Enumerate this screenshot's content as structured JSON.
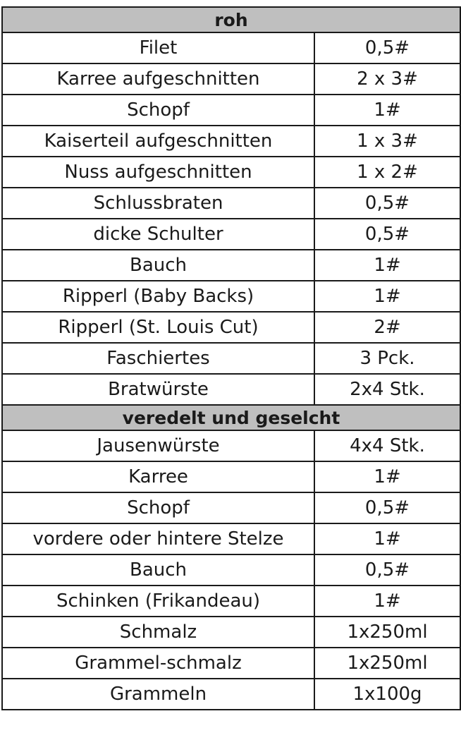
{
  "sections": [
    {
      "title": "roh",
      "rows": [
        {
          "name": "Filet",
          "amount": "0,5#"
        },
        {
          "name": "Karree aufgeschnitten",
          "amount": "2 x 3#"
        },
        {
          "name": "Schopf",
          "amount": "1#"
        },
        {
          "name": "Kaiserteil aufgeschnitten",
          "amount": "1 x 3#"
        },
        {
          "name": "Nuss aufgeschnitten",
          "amount": "1 x 2#"
        },
        {
          "name": "Schlussbraten",
          "amount": "0,5#"
        },
        {
          "name": "dicke Schulter",
          "amount": "0,5#"
        },
        {
          "name": "Bauch",
          "amount": "1#"
        },
        {
          "name": "Ripperl (Baby Backs)",
          "amount": "1#"
        },
        {
          "name": "Ripperl (St. Louis Cut)",
          "amount": "2#"
        },
        {
          "name": "Faschiertes",
          "amount": "3 Pck."
        },
        {
          "name": "Bratwürste",
          "amount": "2x4 Stk."
        }
      ]
    },
    {
      "title": "veredelt und geselcht",
      "rows": [
        {
          "name": "Jausenwürste",
          "amount": "4x4 Stk."
        },
        {
          "name": "Karree",
          "amount": "1#"
        },
        {
          "name": "Schopf",
          "amount": "0,5#"
        },
        {
          "name": "vordere oder hintere Stelze",
          "amount": "1#"
        },
        {
          "name": "Bauch",
          "amount": "0,5#"
        },
        {
          "name": "Schinken (Frikandeau)",
          "amount": "1#"
        },
        {
          "name": "Schmalz",
          "amount": "1x250ml"
        },
        {
          "name": "Grammel-schmalz",
          "amount": "1x250ml"
        },
        {
          "name": "Grammeln",
          "amount": "1x100g"
        }
      ]
    }
  ]
}
